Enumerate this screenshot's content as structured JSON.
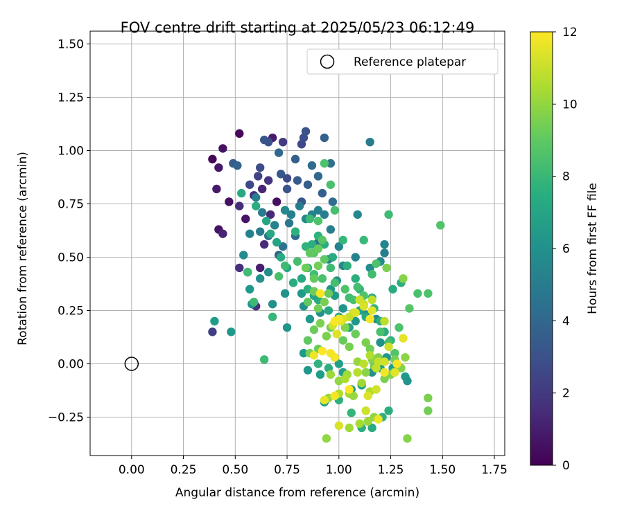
{
  "chart_data": {
    "type": "scatter",
    "title": "FOV centre drift starting at 2025/05/23 06:12:49",
    "xlabel": "Angular distance from reference (arcmin)",
    "ylabel": "Rotation from reference (arcmin)",
    "xlim": [
      -0.2,
      1.8
    ],
    "ylim": [
      -0.43,
      1.56
    ],
    "xticks": [
      0.0,
      0.25,
      0.5,
      0.75,
      1.0,
      1.25,
      1.5,
      1.75
    ],
    "xtick_labels": [
      "0.00",
      "0.25",
      "0.50",
      "0.75",
      "1.00",
      "1.25",
      "1.50",
      "1.75"
    ],
    "yticks": [
      -0.25,
      0.0,
      0.25,
      0.5,
      0.75,
      1.0,
      1.25,
      1.5
    ],
    "ytick_labels": [
      "−0.25",
      "0.00",
      "0.25",
      "0.50",
      "0.75",
      "1.00",
      "1.25",
      "1.50"
    ],
    "grid": true,
    "legend": {
      "position": "top-right",
      "entries": [
        {
          "label": "Reference platepar",
          "marker": "open-circle"
        }
      ]
    },
    "reference_point": {
      "x": 0.0,
      "y": 0.0
    },
    "colorbar": {
      "label": "Hours from first FF file",
      "colormap": "viridis",
      "range": [
        0,
        12
      ],
      "ticks": [
        0,
        2,
        4,
        6,
        8,
        10,
        12
      ],
      "tick_labels": [
        "0",
        "2",
        "4",
        "6",
        "8",
        "10",
        "12"
      ]
    },
    "points": [
      [
        0.39,
        0.96,
        0.2
      ],
      [
        0.42,
        0.92,
        0.8
      ],
      [
        0.44,
        1.01,
        0.6
      ],
      [
        0.52,
        1.08,
        0.3
      ],
      [
        0.47,
        0.76,
        0.5
      ],
      [
        0.55,
        0.68,
        0.7
      ],
      [
        0.42,
        0.63,
        0.6
      ],
      [
        0.41,
        0.82,
        0.9
      ],
      [
        0.44,
        0.61,
        1.2
      ],
      [
        0.52,
        0.74,
        1.5
      ],
      [
        0.56,
        0.43,
        0.8
      ],
      [
        0.52,
        0.45,
        1.6
      ],
      [
        0.62,
        0.45,
        1.0
      ],
      [
        0.63,
        0.82,
        1.3
      ],
      [
        0.68,
        1.06,
        1.0
      ],
      [
        0.7,
        0.76,
        0.5
      ],
      [
        0.66,
        0.86,
        1.8
      ],
      [
        0.59,
        0.79,
        1.7
      ],
      [
        0.67,
        0.7,
        1.4
      ],
      [
        0.73,
        1.04,
        2.0
      ],
      [
        0.64,
        0.56,
        1.5
      ],
      [
        0.6,
        0.27,
        1.7
      ],
      [
        0.39,
        0.15,
        2.2
      ],
      [
        0.49,
        0.94,
        3.5
      ],
      [
        0.51,
        0.93,
        3.8
      ],
      [
        0.57,
        0.84,
        2.6
      ],
      [
        0.61,
        0.88,
        2.4
      ],
      [
        0.62,
        0.92,
        2.8
      ],
      [
        0.64,
        1.05,
        3.2
      ],
      [
        0.66,
        1.04,
        3.0
      ],
      [
        0.71,
        0.99,
        4.0
      ],
      [
        0.72,
        0.89,
        3.3
      ],
      [
        0.75,
        0.82,
        3.1
      ],
      [
        0.75,
        0.87,
        2.7
      ],
      [
        0.79,
        0.96,
        3.6
      ],
      [
        0.8,
        0.86,
        3.4
      ],
      [
        0.82,
        0.76,
        3.2
      ],
      [
        0.83,
        1.06,
        2.9
      ],
      [
        0.84,
        1.09,
        3.0
      ],
      [
        0.82,
        1.03,
        2.6
      ],
      [
        0.85,
        0.84,
        3.5
      ],
      [
        0.87,
        0.93,
        4.2
      ],
      [
        0.93,
        1.06,
        3.7
      ],
      [
        0.9,
        0.88,
        4.0
      ],
      [
        0.92,
        0.8,
        3.6
      ],
      [
        0.96,
        0.94,
        4.4
      ],
      [
        0.97,
        0.76,
        4.3
      ],
      [
        0.9,
        0.57,
        4.5
      ],
      [
        0.85,
        0.45,
        3.9
      ],
      [
        0.79,
        0.6,
        4.1
      ],
      [
        0.76,
        0.66,
        4.8
      ],
      [
        0.73,
        0.55,
        4.6
      ],
      [
        0.71,
        0.51,
        3.7
      ],
      [
        0.66,
        0.6,
        4.4
      ],
      [
        0.62,
        0.62,
        5.0
      ],
      [
        0.57,
        0.61,
        5.3
      ],
      [
        0.54,
        0.51,
        5.8
      ],
      [
        0.6,
        0.78,
        5.2
      ],
      [
        0.63,
        0.71,
        5.0
      ],
      [
        0.69,
        0.65,
        5.4
      ],
      [
        0.74,
        0.72,
        5.6
      ],
      [
        0.77,
        0.7,
        5.2
      ],
      [
        0.81,
        0.74,
        5.0
      ],
      [
        0.84,
        0.68,
        5.6
      ],
      [
        0.87,
        0.7,
        5.4
      ],
      [
        0.9,
        0.72,
        5.3
      ],
      [
        0.93,
        0.7,
        5.2
      ],
      [
        0.96,
        0.63,
        5.1
      ],
      [
        0.95,
        0.49,
        5.3
      ],
      [
        1.0,
        0.55,
        5.4
      ],
      [
        1.09,
        0.7,
        5.5
      ],
      [
        1.15,
        1.04,
        5.0
      ],
      [
        1.22,
        0.56,
        5.5
      ],
      [
        1.22,
        0.52,
        5.2
      ],
      [
        1.2,
        0.48,
        5.7
      ],
      [
        1.15,
        0.45,
        5.8
      ],
      [
        1.08,
        0.5,
        5.4
      ],
      [
        1.02,
        0.46,
        5.6
      ],
      [
        0.99,
        0.39,
        6.0
      ],
      [
        0.96,
        0.35,
        6.4
      ],
      [
        0.88,
        0.32,
        6.3
      ],
      [
        0.82,
        0.33,
        6.5
      ],
      [
        0.74,
        0.33,
        6.1
      ],
      [
        0.68,
        0.28,
        6.0
      ],
      [
        0.58,
        0.28,
        6.2
      ],
      [
        0.57,
        0.35,
        6.4
      ],
      [
        0.62,
        0.4,
        6.0
      ],
      [
        0.66,
        0.43,
        5.9
      ],
      [
        0.4,
        0.2,
        6.6
      ],
      [
        0.48,
        0.15,
        6.4
      ],
      [
        0.75,
        0.17,
        6.2
      ],
      [
        0.83,
        0.27,
        6.0
      ],
      [
        0.86,
        0.21,
        6.3
      ],
      [
        0.91,
        0.24,
        6.1
      ],
      [
        0.98,
        0.32,
        6.5
      ],
      [
        1.02,
        0.26,
        6.2
      ],
      [
        1.08,
        0.2,
        6.3
      ],
      [
        1.13,
        0.23,
        6.0
      ],
      [
        1.18,
        0.21,
        5.8
      ],
      [
        1.2,
        0.1,
        6.1
      ],
      [
        1.23,
        0.03,
        6.4
      ],
      [
        1.26,
        -0.02,
        6.6
      ],
      [
        1.32,
        -0.06,
        6.5
      ],
      [
        1.33,
        -0.08,
        6.2
      ],
      [
        1.2,
        -0.02,
        6.8
      ],
      [
        1.16,
        -0.04,
        6.0
      ],
      [
        1.11,
        -0.1,
        6.6
      ],
      [
        1.06,
        -0.12,
        6.3
      ],
      [
        1.02,
        -0.04,
        6.7
      ],
      [
        0.98,
        0.03,
        6.9
      ],
      [
        0.91,
        -0.05,
        6.6
      ],
      [
        0.85,
        -0.03,
        6.4
      ],
      [
        0.83,
        0.05,
        6.5
      ],
      [
        0.93,
        -0.18,
        6.8
      ],
      [
        1.0,
        0.0,
        6.7
      ],
      [
        1.1,
        0.25,
        7.0
      ],
      [
        1.13,
        0.22,
        7.2
      ],
      [
        1.05,
        0.17,
        7.0
      ],
      [
        1.0,
        0.22,
        7.4
      ],
      [
        0.95,
        0.25,
        7.1
      ],
      [
        0.9,
        0.3,
        7.3
      ],
      [
        0.88,
        0.32,
        7.0
      ],
      [
        0.85,
        0.35,
        7.5
      ],
      [
        0.82,
        0.4,
        7.2
      ],
      [
        0.78,
        0.38,
        7.4
      ],
      [
        0.75,
        0.45,
        7.1
      ],
      [
        0.72,
        0.5,
        7.3
      ],
      [
        0.7,
        0.57,
        7.0
      ],
      [
        0.67,
        0.61,
        7.2
      ],
      [
        0.65,
        0.67,
        7.1
      ],
      [
        0.6,
        0.74,
        7.4
      ],
      [
        0.53,
        0.8,
        7.2
      ],
      [
        0.79,
        0.62,
        7.6
      ],
      [
        0.84,
        0.55,
        7.8
      ],
      [
        0.87,
        0.56,
        7.5
      ],
      [
        0.9,
        0.6,
        7.7
      ],
      [
        0.93,
        0.56,
        7.4
      ],
      [
        0.97,
        0.5,
        7.3
      ],
      [
        1.04,
        0.46,
        7.6
      ],
      [
        1.08,
        0.4,
        7.5
      ],
      [
        1.1,
        0.35,
        7.7
      ],
      [
        1.16,
        0.31,
        7.4
      ],
      [
        1.17,
        0.26,
        7.8
      ],
      [
        1.2,
        0.2,
        7.6
      ],
      [
        1.22,
        0.15,
        7.3
      ],
      [
        1.25,
        0.11,
        7.7
      ],
      [
        1.26,
        0.35,
        7.4
      ],
      [
        1.3,
        0.38,
        7.5
      ],
      [
        1.26,
        -0.04,
        7.8
      ],
      [
        1.24,
        -0.22,
        7.5
      ],
      [
        1.21,
        -0.25,
        7.7
      ],
      [
        1.16,
        -0.3,
        7.4
      ],
      [
        1.11,
        -0.3,
        7.6
      ],
      [
        1.06,
        -0.23,
        7.9
      ],
      [
        1.0,
        -0.17,
        7.6
      ],
      [
        0.9,
        0.0,
        7.7
      ],
      [
        0.95,
        -0.02,
        7.5
      ],
      [
        0.64,
        0.02,
        8.2
      ],
      [
        0.68,
        0.22,
        8.0
      ],
      [
        0.59,
        0.29,
        8.2
      ],
      [
        0.56,
        0.43,
        8.3
      ],
      [
        0.71,
        0.41,
        8.5
      ],
      [
        0.74,
        0.46,
        8.2
      ],
      [
        0.8,
        0.48,
        8.4
      ],
      [
        0.85,
        0.45,
        8.1
      ],
      [
        0.88,
        0.42,
        8.3
      ],
      [
        0.92,
        0.4,
        8.5
      ],
      [
        0.96,
        0.45,
        8.2
      ],
      [
        0.98,
        0.38,
        8.4
      ],
      [
        1.03,
        0.35,
        8.6
      ],
      [
        1.05,
        0.31,
        8.3
      ],
      [
        1.07,
        0.3,
        8.5
      ],
      [
        1.09,
        0.36,
        8.4
      ],
      [
        1.12,
        0.32,
        8.7
      ],
      [
        1.16,
        0.42,
        8.3
      ],
      [
        1.18,
        0.47,
        8.6
      ],
      [
        1.2,
        0.15,
        8.5
      ],
      [
        1.24,
        0.1,
        8.4
      ],
      [
        1.27,
        0.05,
        8.7
      ],
      [
        1.29,
        0.17,
        8.6
      ],
      [
        1.34,
        0.26,
        8.8
      ],
      [
        1.38,
        0.33,
        8.5
      ],
      [
        1.43,
        0.33,
        8.6
      ],
      [
        1.49,
        0.65,
        8.7
      ],
      [
        1.24,
        0.7,
        8.2
      ],
      [
        1.12,
        0.58,
        8.1
      ],
      [
        1.02,
        0.58,
        8.0
      ],
      [
        0.98,
        0.72,
        8.4
      ],
      [
        0.96,
        0.84,
        8.5
      ],
      [
        0.9,
        0.67,
        8.6
      ],
      [
        0.86,
        0.68,
        8.2
      ],
      [
        0.93,
        0.94,
        8.6
      ],
      [
        0.92,
        0.58,
        8.8
      ],
      [
        0.88,
        0.52,
        8.9
      ],
      [
        0.9,
        0.54,
        9.2
      ],
      [
        0.86,
        0.52,
        9.0
      ],
      [
        0.84,
        0.45,
        9.3
      ],
      [
        0.88,
        0.4,
        9.1
      ],
      [
        0.9,
        0.46,
        9.4
      ],
      [
        0.93,
        0.49,
        9.0
      ],
      [
        0.95,
        0.33,
        9.2
      ],
      [
        0.93,
        0.29,
        9.5
      ],
      [
        0.88,
        0.34,
        9.3
      ],
      [
        0.85,
        0.29,
        9.0
      ],
      [
        0.9,
        0.26,
        9.4
      ],
      [
        0.91,
        0.19,
        9.6
      ],
      [
        0.88,
        0.16,
        9.3
      ],
      [
        0.85,
        0.11,
        9.0
      ],
      [
        0.86,
        0.05,
        9.5
      ],
      [
        0.9,
        0.07,
        9.3
      ],
      [
        0.94,
        0.13,
        9.6
      ],
      [
        0.96,
        0.17,
        9.4
      ],
      [
        1.02,
        0.11,
        9.2
      ],
      [
        1.05,
        0.08,
        9.5
      ],
      [
        1.03,
        0.17,
        9.7
      ],
      [
        1.08,
        0.14,
        9.3
      ],
      [
        1.13,
        0.1,
        9.6
      ],
      [
        1.15,
        0.07,
        9.4
      ],
      [
        1.16,
        0.02,
        9.8
      ],
      [
        1.17,
        -0.01,
        9.5
      ],
      [
        1.19,
        0.03,
        9.7
      ],
      [
        1.22,
        -0.07,
        9.6
      ],
      [
        1.25,
        -0.05,
        9.8
      ],
      [
        1.27,
        0.02,
        9.5
      ],
      [
        1.3,
        -0.02,
        9.7
      ],
      [
        1.32,
        0.03,
        9.9
      ],
      [
        1.23,
        0.45,
        9.6
      ],
      [
        1.31,
        0.4,
        9.8
      ],
      [
        1.43,
        -0.16,
        9.6
      ],
      [
        1.43,
        -0.22,
        9.4
      ],
      [
        1.33,
        -0.35,
        9.8
      ],
      [
        1.13,
        -0.04,
        9.9
      ],
      [
        1.09,
        0.01,
        10.1
      ],
      [
        1.04,
        -0.05,
        10.3
      ],
      [
        1.0,
        -0.08,
        10.0
      ],
      [
        0.96,
        -0.05,
        10.2
      ],
      [
        1.05,
        -0.14,
        10.4
      ],
      [
        1.07,
        -0.15,
        10.1
      ],
      [
        1.11,
        -0.09,
        10.3
      ],
      [
        1.15,
        -0.13,
        10.5
      ],
      [
        1.17,
        -0.25,
        10.0
      ],
      [
        1.14,
        -0.27,
        10.2
      ],
      [
        1.1,
        -0.28,
        10.4
      ],
      [
        1.05,
        -0.3,
        10.3
      ],
      [
        0.94,
        -0.35,
        10.0
      ],
      [
        0.95,
        -0.16,
        10.2
      ],
      [
        1.0,
        -0.14,
        10.6
      ],
      [
        1.03,
        -0.07,
        10.5
      ],
      [
        1.09,
        -0.04,
        10.7
      ],
      [
        1.12,
        0.0,
        10.8
      ],
      [
        1.15,
        0.04,
        10.6
      ],
      [
        1.18,
        -0.02,
        10.9
      ],
      [
        1.19,
        0.01,
        11.0
      ],
      [
        1.22,
        0.01,
        11.2
      ],
      [
        1.24,
        0.08,
        11.1
      ],
      [
        1.22,
        0.2,
        10.8
      ],
      [
        1.16,
        0.3,
        10.9
      ],
      [
        1.12,
        0.28,
        11.0
      ],
      [
        1.1,
        0.3,
        11.1
      ],
      [
        1.07,
        0.24,
        11.2
      ],
      [
        1.05,
        0.22,
        11.0
      ],
      [
        1.02,
        0.21,
        11.3
      ],
      [
        0.99,
        0.14,
        11.4
      ],
      [
        0.97,
        0.18,
        11.2
      ],
      [
        1.01,
        0.2,
        11.5
      ],
      [
        1.08,
        0.24,
        11.4
      ],
      [
        1.12,
        0.27,
        11.3
      ],
      [
        1.16,
        0.25,
        11.5
      ],
      [
        1.18,
        -0.12,
        11.2
      ],
      [
        1.14,
        -0.15,
        11.4
      ],
      [
        0.93,
        -0.17,
        11.6
      ],
      [
        1.0,
        -0.29,
        11.3
      ],
      [
        1.13,
        -0.22,
        11.1
      ],
      [
        1.19,
        -0.26,
        11.7
      ],
      [
        1.31,
        0.12,
        11.6
      ],
      [
        1.27,
        -0.04,
        11.5
      ],
      [
        1.22,
        -0.04,
        11.8
      ],
      [
        1.28,
        0.0,
        11.9
      ],
      [
        0.98,
        0.03,
        11.9
      ],
      [
        0.96,
        0.05,
        11.8
      ],
      [
        0.92,
        0.06,
        12.0
      ],
      [
        0.88,
        0.04,
        11.7
      ],
      [
        0.98,
        -0.15,
        11.8
      ],
      [
        1.05,
        -0.12,
        12.0
      ],
      [
        0.91,
        0.33,
        11.9
      ],
      [
        0.98,
        0.2,
        12.0
      ],
      [
        1.0,
        0.21,
        11.8
      ],
      [
        1.15,
        0.21,
        11.9
      ]
    ]
  }
}
